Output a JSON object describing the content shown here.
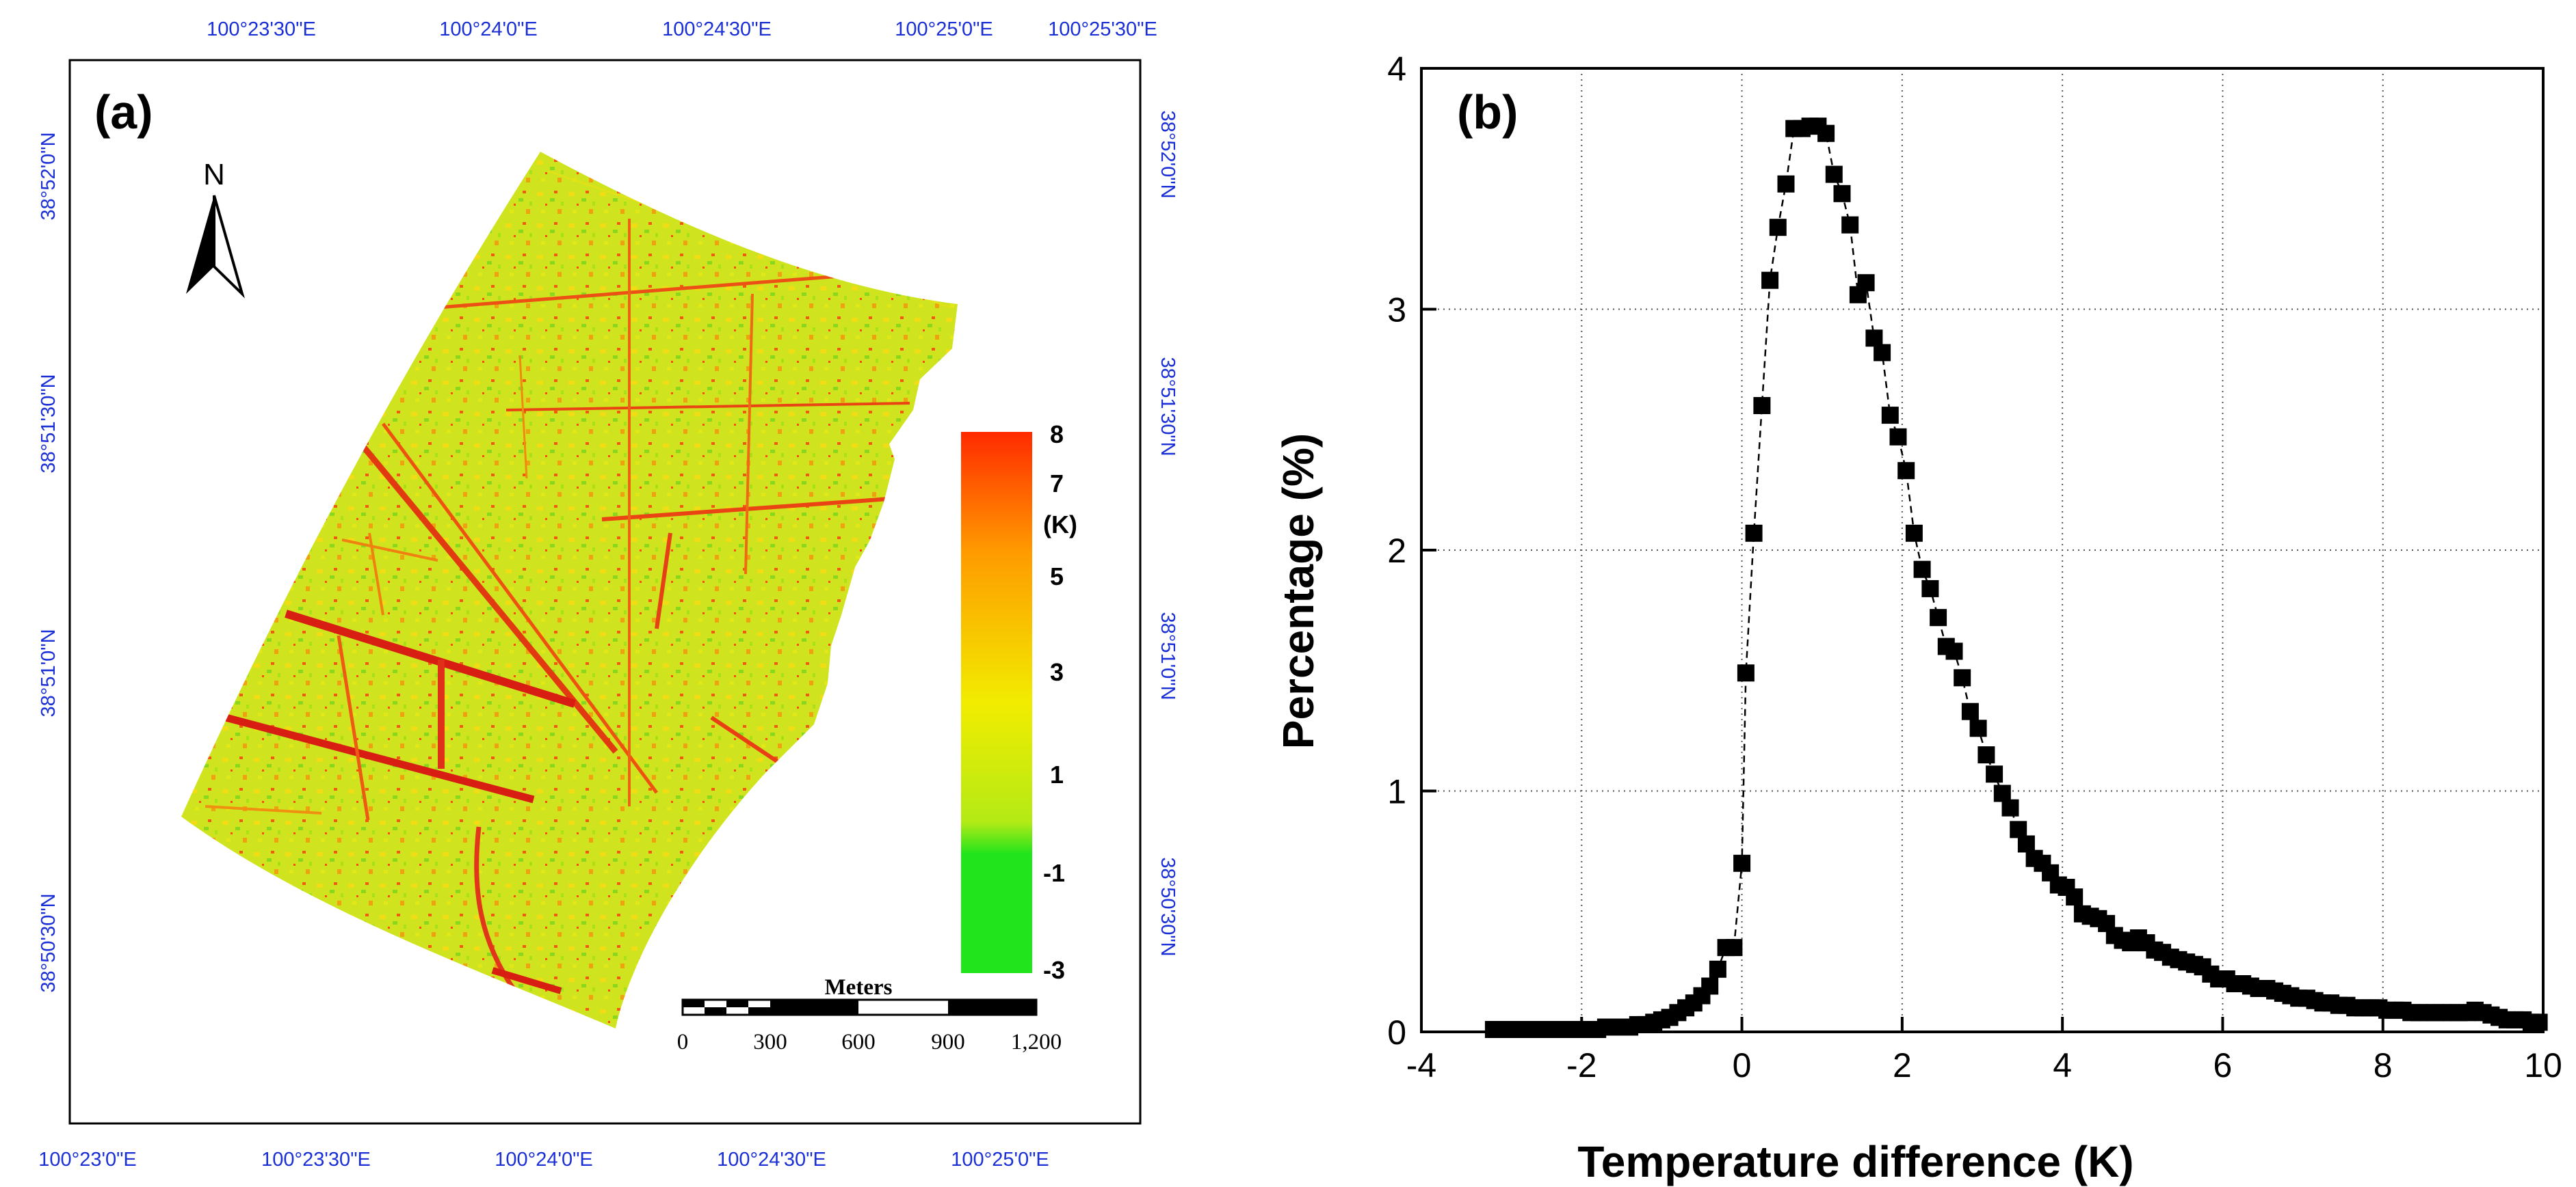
{
  "map_panel": {
    "panel_label": "(a)",
    "north_label": "N",
    "top_lon_labels": [
      "100°23'30\"E",
      "100°24'0\"E",
      "100°24'30\"E",
      "100°25'0\"E",
      "100°25'30\"E"
    ],
    "bottom_lon_labels": [
      "100°23'0\"E",
      "100°23'30\"E",
      "100°24'0\"E",
      "100°24'30\"E",
      "100°25'0\"E"
    ],
    "left_lat_labels": [
      "38°52'0\"N",
      "38°51'30\"N",
      "38°51'0\"N",
      "38°50'30\"N"
    ],
    "right_lat_labels": [
      "38°52'0\"N",
      "38°51'30\"N",
      "38°51'0\"N",
      "38°50'30\"N"
    ],
    "colorbar": {
      "unit": "(K)",
      "ticks": [
        "8",
        "7",
        "5",
        "3",
        "1",
        "-1",
        "-3"
      ],
      "colors": {
        "high": "#ff2a00",
        "upper": "#ff9a00",
        "mid": "#f2ec00",
        "lower": "#b4ea16",
        "low": "#22e41c"
      }
    },
    "scalebar": {
      "title": "Meters",
      "labels": [
        "0",
        "300",
        "600",
        "900",
        "1,200"
      ]
    }
  },
  "chart_data": {
    "type": "scatter",
    "panel_label": "(b)",
    "title": "",
    "xlabel": "Temperature difference (K)",
    "ylabel": "Percentage (%)",
    "xlim": [
      -4,
      10
    ],
    "ylim": [
      0,
      4
    ],
    "xticks": [
      -4,
      -2,
      0,
      2,
      4,
      6,
      8,
      10
    ],
    "yticks": [
      0,
      1,
      2,
      3,
      4
    ],
    "grid": true,
    "marker": "square",
    "connect_line": "dashed",
    "points": [
      [
        -3.1,
        0.01
      ],
      [
        -3.0,
        0.01
      ],
      [
        -2.9,
        0.01
      ],
      [
        -2.8,
        0.01
      ],
      [
        -2.7,
        0.01
      ],
      [
        -2.6,
        0.01
      ],
      [
        -2.5,
        0.01
      ],
      [
        -2.4,
        0.01
      ],
      [
        -2.3,
        0.01
      ],
      [
        -2.2,
        0.01
      ],
      [
        -2.1,
        0.01
      ],
      [
        -2.0,
        0.01
      ],
      [
        -1.9,
        0.01
      ],
      [
        -1.8,
        0.01
      ],
      [
        -1.7,
        0.02
      ],
      [
        -1.6,
        0.02
      ],
      [
        -1.5,
        0.02
      ],
      [
        -1.4,
        0.02
      ],
      [
        -1.3,
        0.03
      ],
      [
        -1.2,
        0.03
      ],
      [
        -1.1,
        0.04
      ],
      [
        -1.0,
        0.05
      ],
      [
        -0.9,
        0.06
      ],
      [
        -0.8,
        0.08
      ],
      [
        -0.7,
        0.1
      ],
      [
        -0.6,
        0.12
      ],
      [
        -0.5,
        0.15
      ],
      [
        -0.4,
        0.19
      ],
      [
        -0.3,
        0.26
      ],
      [
        -0.2,
        0.35
      ],
      [
        -0.1,
        0.35
      ],
      [
        0.0,
        0.7
      ],
      [
        0.05,
        1.49
      ],
      [
        0.15,
        2.07
      ],
      [
        0.25,
        2.6
      ],
      [
        0.35,
        3.12
      ],
      [
        0.45,
        3.34
      ],
      [
        0.55,
        3.52
      ],
      [
        0.65,
        3.75
      ],
      [
        0.75,
        3.75
      ],
      [
        0.85,
        3.76
      ],
      [
        0.95,
        3.76
      ],
      [
        1.05,
        3.73
      ],
      [
        1.15,
        3.56
      ],
      [
        1.25,
        3.48
      ],
      [
        1.35,
        3.35
      ],
      [
        1.45,
        3.06
      ],
      [
        1.55,
        3.11
      ],
      [
        1.65,
        2.88
      ],
      [
        1.75,
        2.82
      ],
      [
        1.85,
        2.56
      ],
      [
        1.95,
        2.47
      ],
      [
        2.05,
        2.33
      ],
      [
        2.15,
        2.07
      ],
      [
        2.25,
        1.92
      ],
      [
        2.35,
        1.84
      ],
      [
        2.45,
        1.72
      ],
      [
        2.55,
        1.6
      ],
      [
        2.65,
        1.58
      ],
      [
        2.75,
        1.47
      ],
      [
        2.85,
        1.33
      ],
      [
        2.95,
        1.26
      ],
      [
        3.05,
        1.15
      ],
      [
        3.15,
        1.07
      ],
      [
        3.25,
        0.99
      ],
      [
        3.35,
        0.93
      ],
      [
        3.45,
        0.84
      ],
      [
        3.55,
        0.78
      ],
      [
        3.65,
        0.72
      ],
      [
        3.75,
        0.7
      ],
      [
        3.85,
        0.66
      ],
      [
        3.95,
        0.61
      ],
      [
        4.05,
        0.6
      ],
      [
        4.15,
        0.56
      ],
      [
        4.25,
        0.49
      ],
      [
        4.35,
        0.48
      ],
      [
        4.45,
        0.47
      ],
      [
        4.55,
        0.45
      ],
      [
        4.65,
        0.4
      ],
      [
        4.75,
        0.38
      ],
      [
        4.85,
        0.37
      ],
      [
        4.95,
        0.39
      ],
      [
        5.05,
        0.37
      ],
      [
        5.15,
        0.34
      ],
      [
        5.25,
        0.33
      ],
      [
        5.35,
        0.31
      ],
      [
        5.45,
        0.3
      ],
      [
        5.55,
        0.29
      ],
      [
        5.65,
        0.28
      ],
      [
        5.75,
        0.27
      ],
      [
        5.85,
        0.24
      ],
      [
        5.95,
        0.22
      ],
      [
        6.05,
        0.22
      ],
      [
        6.15,
        0.2
      ],
      [
        6.25,
        0.2
      ],
      [
        6.35,
        0.19
      ],
      [
        6.45,
        0.18
      ],
      [
        6.55,
        0.18
      ],
      [
        6.65,
        0.17
      ],
      [
        6.75,
        0.16
      ],
      [
        6.85,
        0.15
      ],
      [
        6.95,
        0.14
      ],
      [
        7.05,
        0.14
      ],
      [
        7.15,
        0.13
      ],
      [
        7.25,
        0.12
      ],
      [
        7.35,
        0.12
      ],
      [
        7.45,
        0.11
      ],
      [
        7.55,
        0.11
      ],
      [
        7.65,
        0.1
      ],
      [
        7.75,
        0.1
      ],
      [
        7.85,
        0.1
      ],
      [
        7.95,
        0.1
      ],
      [
        8.05,
        0.09
      ],
      [
        8.15,
        0.09
      ],
      [
        8.25,
        0.09
      ],
      [
        8.35,
        0.08
      ],
      [
        8.45,
        0.08
      ],
      [
        8.55,
        0.08
      ],
      [
        8.65,
        0.08
      ],
      [
        8.75,
        0.08
      ],
      [
        8.85,
        0.08
      ],
      [
        8.95,
        0.08
      ],
      [
        9.05,
        0.08
      ],
      [
        9.15,
        0.09
      ],
      [
        9.25,
        0.08
      ],
      [
        9.35,
        0.07
      ],
      [
        9.45,
        0.06
      ],
      [
        9.55,
        0.05
      ],
      [
        9.65,
        0.05
      ],
      [
        9.75,
        0.05
      ],
      [
        9.85,
        0.04
      ],
      [
        9.95,
        0.04
      ]
    ]
  }
}
